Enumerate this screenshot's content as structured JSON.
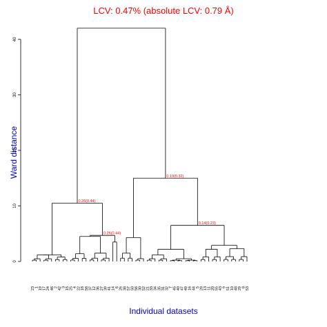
{
  "chart_data": {
    "type": "dendrogram",
    "title": "LCV: 0.47% (absolute LCV: 0.79 Å)",
    "xlabel": "Individual datasets",
    "ylabel": "Ward distance",
    "ylim": [
      0,
      45
    ],
    "yticks": [
      "0",
      "10",
      "20",
      "30",
      "40"
    ],
    "leaves": [
      "23",
      "1",
      "19",
      "17",
      "24",
      "46",
      "2",
      "42",
      "3",
      "15",
      "25",
      "4",
      "22",
      "18",
      "58",
      "37",
      "12",
      "36",
      "27",
      "39",
      "41",
      "14",
      "6",
      "26",
      "38",
      "57",
      "50",
      "56",
      "30",
      "52",
      "21",
      "33",
      "34",
      "35",
      "31",
      "32",
      "7",
      "45",
      "40",
      "47",
      "49",
      "16",
      "44",
      "5",
      "28",
      "13",
      "11",
      "20",
      "55",
      "43",
      "9",
      "51",
      "10",
      "48",
      "29",
      "8",
      "53"
    ],
    "annotations": [
      {
        "label": "0.26(0.44)",
        "height": 10.5
      },
      {
        "label": "0.26(0.44)",
        "height": 4.7
      },
      {
        "label": "0.19(0.32)",
        "height": 15.0
      },
      {
        "label": "0.14(0.23)",
        "height": 6.5
      }
    ],
    "merge_heights": {
      "root": 42.0,
      "left_cluster": 10.5,
      "left_sub_a": 1.2,
      "left_sub_b": 4.7,
      "right_cluster": 15.0,
      "right_sub_a": 4.3,
      "right_sub_b": 6.5
    }
  }
}
